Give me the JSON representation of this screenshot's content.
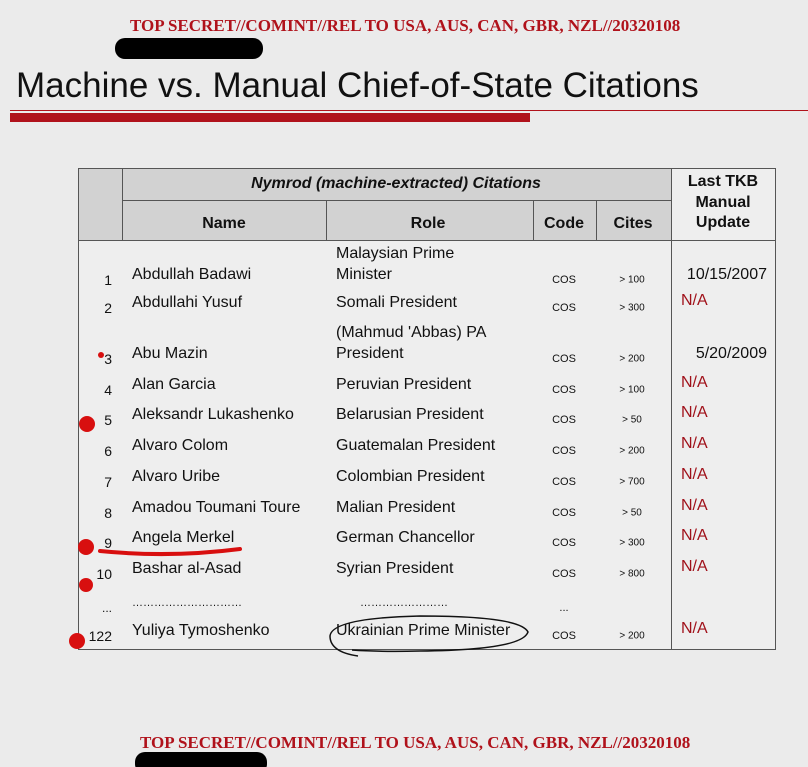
{
  "classification_top": "TOP SECRET//COMINT//REL TO USA, AUS, CAN, GBR, NZL//20320108",
  "title": "Machine vs. Manual Chief-of-State Citations",
  "table": {
    "header": {
      "group": "Nymrod (machine-extracted)  Citations",
      "name": "Name",
      "role": "Role",
      "code": "Code",
      "cites": "Cites",
      "last_col": [
        "Last TKB",
        "Manual",
        "Update"
      ]
    },
    "rows": [
      {
        "num": "1",
        "name": "Abdullah Badawi",
        "role": [
          "Malaysian Prime",
          "Minister"
        ],
        "code": "COS",
        "cites": "> 100",
        "update": "10/15/2007"
      },
      {
        "num": "2",
        "name": "Abdullahi Yusuf",
        "role": "Somali President",
        "code": "COS",
        "cites": "> 300",
        "update": "N/A"
      },
      {
        "num": "3",
        "name": "Abu Mazin",
        "role": [
          "(Mahmud 'Abbas) PA",
          "President"
        ],
        "code": "COS",
        "cites": "> 200",
        "update": "5/20/2009"
      },
      {
        "num": "4",
        "name": "Alan Garcia",
        "role": "Peruvian President",
        "code": "COS",
        "cites": "> 100",
        "update": "N/A"
      },
      {
        "num": "5",
        "name": "Aleksandr Lukashenko",
        "role": "Belarusian President",
        "code": "COS",
        "cites": "> 50",
        "update": "N/A"
      },
      {
        "num": "6",
        "name": "Alvaro Colom",
        "role": "Guatemalan President",
        "code": "COS",
        "cites": "> 200",
        "update": "N/A"
      },
      {
        "num": "7",
        "name": "Alvaro Uribe",
        "role": "Colombian President",
        "code": "COS",
        "cites": "> 700",
        "update": "N/A"
      },
      {
        "num": "8",
        "name": "Amadou Toumani Toure",
        "role": "Malian President",
        "code": "COS",
        "cites": "> 50",
        "update": "N/A"
      },
      {
        "num": "9",
        "name": "Angela Merkel",
        "role": "German Chancellor",
        "code": "COS",
        "cites": "> 300",
        "update": "N/A"
      },
      {
        "num": "10",
        "name": "Bashar al-Asad",
        "role": "Syrian President",
        "code": "COS",
        "cites": "> 800",
        "update": "N/A"
      },
      {
        "num": "...",
        "name": "…………………………",
        "role": "……………………",
        "code": "..."
      },
      {
        "num": "122",
        "name": "Yuliya Tymoshenko",
        "role": "Ukrainian Prime Minister",
        "code": "COS",
        "cites": "> 200",
        "update": "N/A"
      }
    ]
  },
  "classification_bottom": "TOP SECRET//COMINT//REL TO USA, AUS, CAN, GBR, NZL//20320108"
}
